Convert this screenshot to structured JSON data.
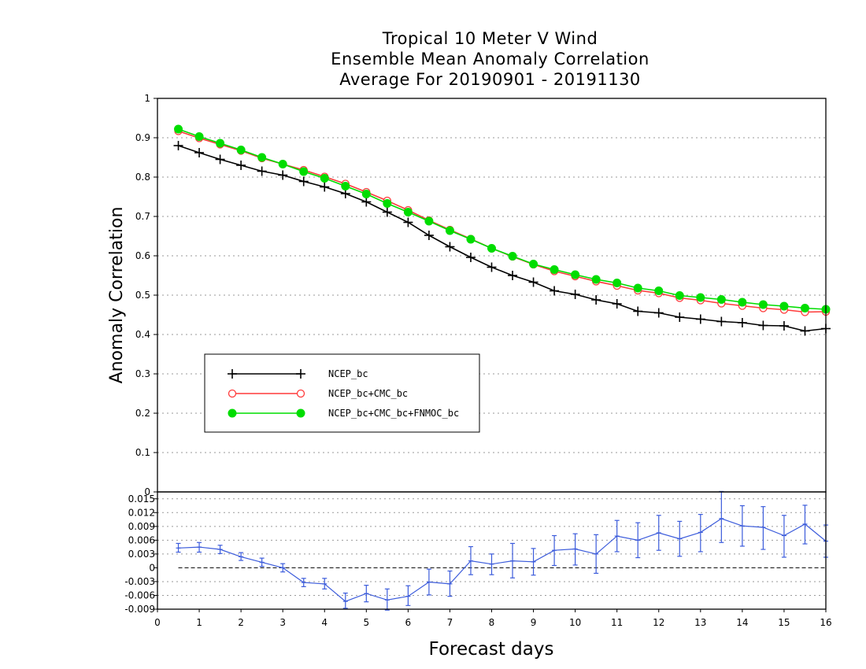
{
  "chart_data": {
    "type": "line",
    "title": [
      "Tropical 10 Meter V Wind",
      "Ensemble Mean Anomaly Correlation",
      "Average For 20190901 - 20191130"
    ],
    "xlabel": "Forecast days",
    "ylabel": "Anomaly Correlation",
    "xlim": [
      0,
      16
    ],
    "x_ticks": [
      "0",
      "1",
      "2",
      "3",
      "4",
      "5",
      "6",
      "7",
      "8",
      "9",
      "10",
      "11",
      "12",
      "13",
      "14",
      "15",
      "16"
    ],
    "upper_panel": {
      "ylim": [
        0,
        1
      ],
      "y_ticks": [
        "0",
        "0.1",
        "0.2",
        "0.3",
        "0.4",
        "0.5",
        "0.6",
        "0.7",
        "0.8",
        "0.9",
        "1"
      ],
      "grid": "horizontal dotted",
      "legend_placement": "lower-left",
      "x": [
        0.5,
        1,
        1.5,
        2,
        2.5,
        3,
        3.5,
        4,
        4.5,
        5,
        5.5,
        6,
        6.5,
        7,
        7.5,
        8,
        8.5,
        9,
        9.5,
        10,
        10.5,
        11,
        11.5,
        12,
        12.5,
        13,
        13.5,
        14,
        14.5,
        15,
        15.5,
        16
      ],
      "series": [
        {
          "name": "NCEP_bc",
          "color": "#000000",
          "marker": "plus",
          "values": [
            0.88,
            0.862,
            0.845,
            0.83,
            0.815,
            0.805,
            0.789,
            0.775,
            0.758,
            0.737,
            0.711,
            0.685,
            0.652,
            0.623,
            0.596,
            0.571,
            0.55,
            0.533,
            0.511,
            0.502,
            0.488,
            0.478,
            0.459,
            0.455,
            0.444,
            0.439,
            0.433,
            0.43,
            0.423,
            0.422,
            0.409,
            0.415
          ]
        },
        {
          "name": "NCEP_bc+CMC_bc",
          "color": "#ff3a3a",
          "marker": "open-circle",
          "values": [
            0.917,
            0.899,
            0.883,
            0.867,
            0.848,
            0.833,
            0.818,
            0.801,
            0.783,
            0.762,
            0.74,
            0.716,
            0.69,
            0.666,
            0.643,
            0.619,
            0.598,
            0.578,
            0.561,
            0.548,
            0.535,
            0.524,
            0.512,
            0.505,
            0.493,
            0.487,
            0.479,
            0.473,
            0.467,
            0.463,
            0.457,
            0.458
          ]
        },
        {
          "name": "NCEP_bc+CMC_bc+FNMOC_bc",
          "color": "#00dd00",
          "marker": "filled-circle",
          "values": [
            0.922,
            0.903,
            0.886,
            0.869,
            0.85,
            0.833,
            0.814,
            0.797,
            0.777,
            0.757,
            0.733,
            0.711,
            0.688,
            0.664,
            0.642,
            0.619,
            0.599,
            0.579,
            0.565,
            0.552,
            0.54,
            0.531,
            0.518,
            0.511,
            0.499,
            0.494,
            0.489,
            0.482,
            0.476,
            0.472,
            0.467,
            0.464
          ]
        }
      ]
    },
    "lower_panel": {
      "ylim": [
        -0.009,
        0.0165
      ],
      "y_ticks": [
        "-0.009",
        "-0.006",
        "-0.003",
        "0",
        "0.003",
        "0.006",
        "0.009",
        "0.012",
        "0.015"
      ],
      "grid": "horizontal dotted",
      "reference_line": 0,
      "series": [
        {
          "color": "#3b5bdb",
          "x": [
            0.5,
            1,
            1.5,
            2,
            2.5,
            3,
            3.5,
            4,
            4.5,
            5,
            5.5,
            6,
            6.5,
            7,
            7.5,
            8,
            8.5,
            9,
            9.5,
            10,
            10.5,
            11,
            11.5,
            12,
            12.5,
            13,
            13.5,
            14,
            14.5,
            15,
            15.5,
            16
          ],
          "values": [
            0.0043,
            0.0045,
            0.004,
            0.0024,
            0.0012,
            0.0,
            -0.0032,
            -0.0035,
            -0.0073,
            -0.0056,
            -0.007,
            -0.0062,
            -0.0031,
            -0.0035,
            0.0015,
            0.0008,
            0.0015,
            0.0013,
            0.0038,
            0.0041,
            0.003,
            0.0069,
            0.006,
            0.0076,
            0.0063,
            0.0077,
            0.0107,
            0.0091,
            0.0088,
            0.007,
            0.0095,
            0.0058
          ],
          "err_low": [
            0.0034,
            0.0034,
            0.0031,
            0.0016,
            0.0003,
            -0.0009,
            -0.0041,
            -0.0046,
            -0.0088,
            -0.0074,
            -0.0092,
            -0.0082,
            -0.0059,
            -0.0062,
            -0.0015,
            -0.0015,
            -0.0022,
            -0.0016,
            0.0005,
            0.0006,
            -0.0012,
            0.0035,
            0.0022,
            0.0038,
            0.0025,
            0.0035,
            0.0055,
            0.0047,
            0.004,
            0.0023,
            0.0052,
            0.0023
          ],
          "err_high": [
            0.0053,
            0.0055,
            0.0049,
            0.0033,
            0.0021,
            0.0009,
            -0.0023,
            -0.0023,
            -0.0055,
            -0.0038,
            -0.0046,
            -0.0039,
            -0.0003,
            -0.0007,
            0.0046,
            0.003,
            0.0053,
            0.0042,
            0.007,
            0.0074,
            0.0072,
            0.0103,
            0.0098,
            0.0114,
            0.0101,
            0.0116,
            0.0166,
            0.0135,
            0.0133,
            0.0114,
            0.0136,
            0.0093
          ]
        }
      ]
    }
  }
}
